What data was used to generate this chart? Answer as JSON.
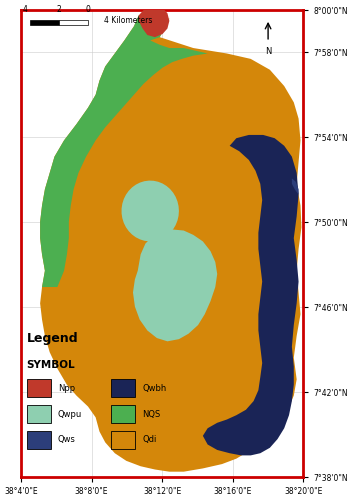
{
  "xlim": [
    38.0667,
    38.3333
  ],
  "ylim": [
    7.6333,
    8.0
  ],
  "x_tick_positions": [
    38.0667,
    38.1333,
    38.2,
    38.2667,
    38.3333
  ],
  "x_tick_labels": [
    "38°4'0\"E",
    "38°8'0\"E",
    "38°12'0\"E",
    "38°16'0\"E",
    "38°20'0\"E"
  ],
  "y_tick_positions": [
    7.6333,
    7.7,
    7.7667,
    7.8333,
    7.9,
    7.9667,
    8.0
  ],
  "y_tick_labels": [
    "7°38'0\"N",
    "7°42'0\"N",
    "7°46'0\"N",
    "7°50'0\"N",
    "7°54'0\"N",
    "7°58'0\"N",
    "8°00'0\"N"
  ],
  "colors": {
    "Npp": "#c0392b",
    "Qwpu": "#8ecfb0",
    "Qws": "#2c3e7a",
    "Qwbh": "#1a2456",
    "NQS": "#4caf50",
    "Qdi": "#d4870a",
    "background": "#ffffff",
    "border": "#cc0000",
    "grid_color": "#cccccc"
  },
  "legend_items_left": [
    {
      "label": "Npp",
      "color": "#c0392b"
    },
    {
      "label": "Qwpu",
      "color": "#8ecfb0"
    },
    {
      "label": "Qws",
      "color": "#2c3e7a"
    }
  ],
  "legend_items_right": [
    {
      "label": "Qwbh",
      "color": "#1a2456"
    },
    {
      "label": "NQS",
      "color": "#4caf50"
    },
    {
      "label": "Qdi",
      "color": "#d4870a"
    }
  ]
}
